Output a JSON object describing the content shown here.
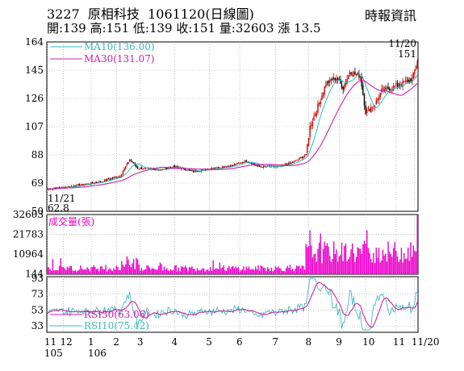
{
  "header": {
    "code": "3227",
    "name": "原相科技",
    "date": "1061120(日線圖)",
    "source": "時報資訊",
    "quote": "開:139 高:151 低:139 收:151 量:32603 漲 13.5"
  },
  "colors": {
    "up": "#cc0000",
    "down": "#000000",
    "ma10": "#33bbbb",
    "ma30": "#cc22aa",
    "volume": "#ee00cc",
    "rsi30": "#cc22aa",
    "rsi10": "#44bbbb",
    "grid": "#999999"
  },
  "chart_data": [
    {
      "type": "candlestick",
      "panel": "price",
      "yticks": [
        50,
        69,
        88,
        107,
        126,
        145,
        164
      ],
      "ylim": [
        50,
        164
      ],
      "legend": [
        {
          "label": "MA10(136.00)",
          "color": "#33bbbb"
        },
        {
          "label": "MA30(131.07)",
          "color": "#cc22aa"
        }
      ],
      "annotations": {
        "low_date": "11/21",
        "low_value": "62.8",
        "high_date": "11/20",
        "high_value": "151"
      },
      "last_close": 151,
      "close_keypoints": [
        [
          0,
          65
        ],
        [
          20,
          67
        ],
        [
          40,
          70
        ],
        [
          55,
          74
        ],
        [
          62,
          85
        ],
        [
          68,
          79
        ],
        [
          85,
          78
        ],
        [
          95,
          80
        ],
        [
          110,
          77
        ],
        [
          125,
          79
        ],
        [
          140,
          81
        ],
        [
          150,
          84
        ],
        [
          160,
          80
        ],
        [
          175,
          80
        ],
        [
          185,
          83
        ],
        [
          195,
          88
        ],
        [
          198,
          107
        ],
        [
          203,
          118
        ],
        [
          210,
          136
        ],
        [
          218,
          140
        ],
        [
          223,
          133
        ],
        [
          228,
          144
        ],
        [
          236,
          141
        ],
        [
          240,
          117
        ],
        [
          247,
          122
        ],
        [
          252,
          131
        ],
        [
          262,
          134
        ],
        [
          270,
          137
        ],
        [
          275,
          139
        ],
        [
          279,
          151
        ]
      ],
      "series": [
        {
          "name": "MA10",
          "value": 136.0
        },
        {
          "name": "MA30",
          "value": 131.07
        }
      ]
    },
    {
      "type": "bar",
      "panel": "volume",
      "title": "成交量(張)",
      "yticks": [
        144,
        10964,
        21783,
        32603
      ],
      "ylim": [
        0,
        32603
      ],
      "last_value": 32603
    },
    {
      "type": "line",
      "panel": "rsi",
      "yticks": [
        33,
        53,
        73,
        93
      ],
      "ylim": [
        25,
        95
      ],
      "series": [
        {
          "name": "RSI30",
          "label": "RSI30(63.06)",
          "value": 63.06
        },
        {
          "name": "RSI10",
          "label": "RSI10(75.42)",
          "value": 75.42
        }
      ]
    }
  ],
  "x_axis": {
    "labels": [
      {
        "text": "11",
        "pos": 0
      },
      {
        "text": "12",
        "pos": 12
      },
      {
        "text": "1",
        "pos": 33
      },
      {
        "text": "2",
        "pos": 52
      },
      {
        "text": "3",
        "pos": 70
      },
      {
        "text": "4",
        "pos": 96
      },
      {
        "text": "5",
        "pos": 122
      },
      {
        "text": "6",
        "pos": 145
      },
      {
        "text": "7",
        "pos": 172
      },
      {
        "text": "8",
        "pos": 197
      },
      {
        "text": "9",
        "pos": 220
      },
      {
        "text": "10",
        "pos": 240
      },
      {
        "text": "11",
        "pos": 263
      },
      {
        "text": "11/20",
        "pos": 277
      }
    ],
    "years": [
      {
        "text": "105",
        "pos": 0
      },
      {
        "text": "106",
        "pos": 33
      }
    ]
  }
}
